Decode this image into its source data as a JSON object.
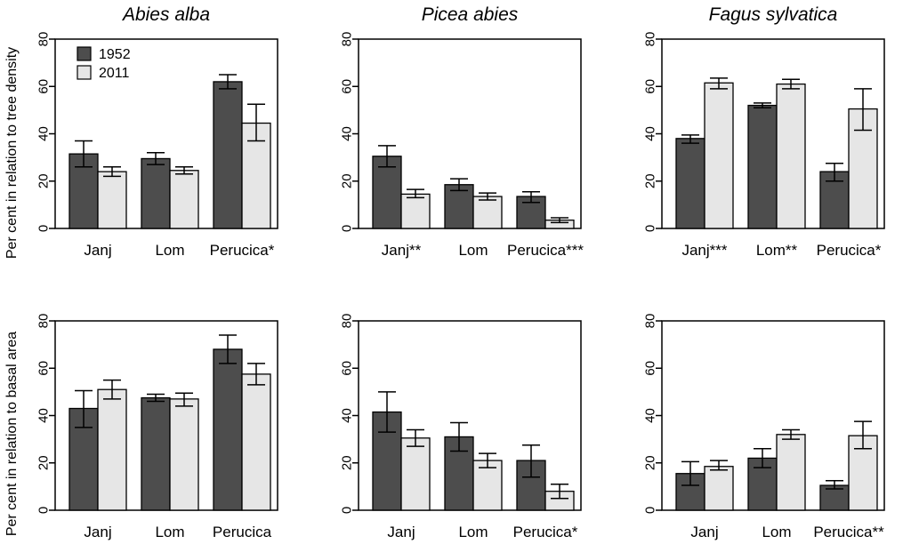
{
  "colors": {
    "y1952": "#4d4d4d",
    "y2011": "#e6e6e6",
    "axis": "#000000"
  },
  "legend": {
    "entries": [
      "1952",
      "2011"
    ],
    "position": "top-left of first panel"
  },
  "row_labels": [
    "Per cent in relation to tree density",
    "Per cent in relation to basal area"
  ],
  "chart_data": [
    {
      "type": "bar",
      "title": "Abies alba",
      "row": 0,
      "col": 0,
      "categories": [
        "Janj",
        "Lom",
        "Perucica*"
      ],
      "ylim": [
        0,
        80
      ],
      "yticks": [
        0,
        20,
        40,
        60,
        80
      ],
      "series": [
        {
          "name": "1952",
          "values": [
            31.5,
            29.5,
            62
          ],
          "err": [
            [
              26,
              37
            ],
            [
              27,
              32
            ],
            [
              59,
              65
            ]
          ]
        },
        {
          "name": "2011",
          "values": [
            24,
            24.5,
            44.5
          ],
          "err": [
            [
              22,
              26
            ],
            [
              23,
              26
            ],
            [
              37,
              52.5
            ]
          ]
        }
      ]
    },
    {
      "type": "bar",
      "title": "Picea abies",
      "row": 0,
      "col": 1,
      "categories": [
        "Janj**",
        "Lom",
        "Perucica***"
      ],
      "ylim": [
        0,
        80
      ],
      "yticks": [
        0,
        20,
        40,
        60,
        80
      ],
      "series": [
        {
          "name": "1952",
          "values": [
            30.5,
            18.5,
            13.5
          ],
          "err": [
            [
              26,
              35
            ],
            [
              16,
              21
            ],
            [
              11,
              15.5
            ]
          ]
        },
        {
          "name": "2011",
          "values": [
            14.5,
            13.5,
            3.5
          ],
          "err": [
            [
              13,
              16.5
            ],
            [
              12,
              15
            ],
            [
              2.5,
              4.5
            ]
          ]
        }
      ]
    },
    {
      "type": "bar",
      "title": "Fagus sylvatica",
      "row": 0,
      "col": 2,
      "categories": [
        "Janj***",
        "Lom**",
        "Perucica*"
      ],
      "ylim": [
        0,
        80
      ],
      "yticks": [
        0,
        20,
        40,
        60,
        80
      ],
      "series": [
        {
          "name": "1952",
          "values": [
            38,
            52,
            24
          ],
          "err": [
            [
              36,
              39.5
            ],
            [
              51,
              53
            ],
            [
              20,
              27.5
            ]
          ]
        },
        {
          "name": "2011",
          "values": [
            61.5,
            61,
            50.5
          ],
          "err": [
            [
              59,
              63.5
            ],
            [
              59,
              63
            ],
            [
              41.5,
              59
            ]
          ]
        }
      ]
    },
    {
      "type": "bar",
      "title": "",
      "row": 1,
      "col": 0,
      "categories": [
        "Janj",
        "Lom",
        "Perucica"
      ],
      "ylim": [
        0,
        80
      ],
      "yticks": [
        0,
        20,
        40,
        60,
        80
      ],
      "series": [
        {
          "name": "1952",
          "values": [
            43,
            47.5,
            68
          ],
          "err": [
            [
              35,
              50.5
            ],
            [
              46,
              49
            ],
            [
              62,
              74
            ]
          ]
        },
        {
          "name": "2011",
          "values": [
            51,
            47,
            57.5
          ],
          "err": [
            [
              47,
              55
            ],
            [
              44,
              49.5
            ],
            [
              53,
              62
            ]
          ]
        }
      ]
    },
    {
      "type": "bar",
      "title": "",
      "row": 1,
      "col": 1,
      "categories": [
        "Janj",
        "Lom",
        "Perucica*"
      ],
      "ylim": [
        0,
        80
      ],
      "yticks": [
        0,
        20,
        40,
        60,
        80
      ],
      "series": [
        {
          "name": "1952",
          "values": [
            41.5,
            31,
            21
          ],
          "err": [
            [
              33,
              50
            ],
            [
              25,
              37
            ],
            [
              14,
              27.5
            ]
          ]
        },
        {
          "name": "2011",
          "values": [
            30.5,
            21,
            8
          ],
          "err": [
            [
              27,
              34
            ],
            [
              18,
              24
            ],
            [
              5,
              11
            ]
          ]
        }
      ]
    },
    {
      "type": "bar",
      "title": "",
      "row": 1,
      "col": 2,
      "categories": [
        "Janj",
        "Lom",
        "Perucica**"
      ],
      "ylim": [
        0,
        80
      ],
      "yticks": [
        0,
        20,
        40,
        60,
        80
      ],
      "series": [
        {
          "name": "1952",
          "values": [
            15.5,
            22,
            10.5
          ],
          "err": [
            [
              10.5,
              20.5
            ],
            [
              18,
              26
            ],
            [
              9,
              12.5
            ]
          ]
        },
        {
          "name": "2011",
          "values": [
            18.5,
            32,
            31.5
          ],
          "err": [
            [
              17,
              21
            ],
            [
              30,
              34
            ],
            [
              26,
              37.5
            ]
          ]
        }
      ]
    }
  ]
}
